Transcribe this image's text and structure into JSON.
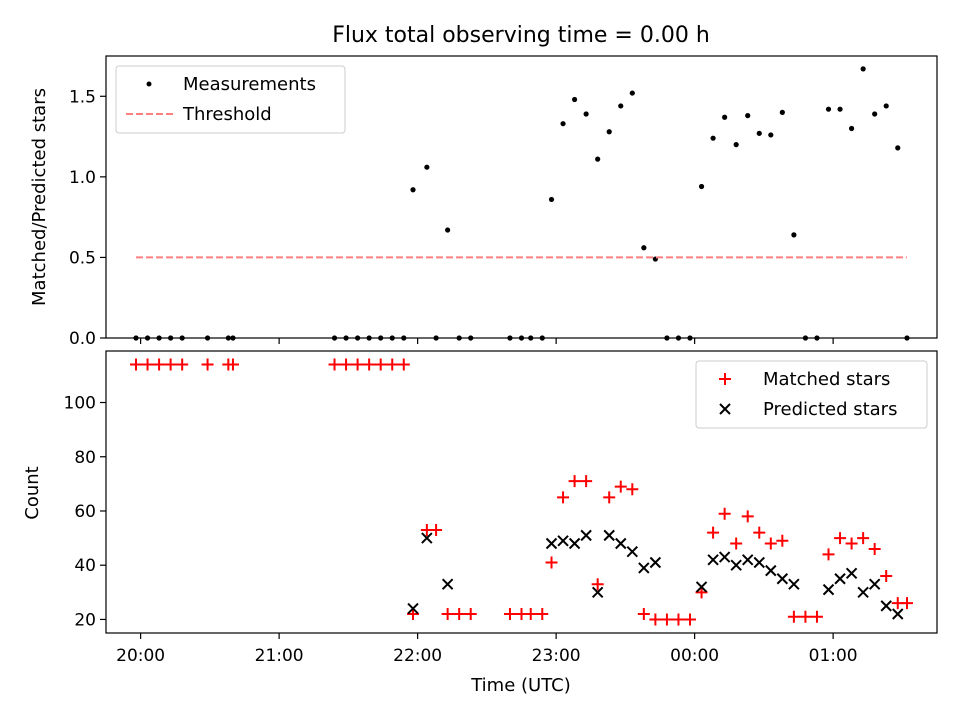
{
  "figure": {
    "title": "Flux total observing time = 0.00 h"
  },
  "chart_data": [
    {
      "type": "scatter",
      "ylabel": "Matched/Predicted stars",
      "xlim": [
        "19:45",
        "01:45"
      ],
      "ylim": [
        0,
        1.75
      ],
      "yticks": [
        0.0,
        0.5,
        1.0,
        1.5
      ],
      "ytick_labels": [
        "0.0",
        "0.5",
        "1.0",
        "1.5"
      ],
      "legend_position": "top-left",
      "series": [
        {
          "name": "Measurements",
          "marker": "dot",
          "color": "#000000",
          "points": [
            [
              "19:58",
              0
            ],
            [
              "20:03",
              0
            ],
            [
              "20:08",
              0
            ],
            [
              "20:13",
              0
            ],
            [
              "20:18",
              0
            ],
            [
              "20:29",
              0
            ],
            [
              "20:38",
              0
            ],
            [
              "20:40",
              0
            ],
            [
              "21:24",
              0
            ],
            [
              "21:29",
              0
            ],
            [
              "21:34",
              0
            ],
            [
              "21:39",
              0
            ],
            [
              "21:44",
              0
            ],
            [
              "21:49",
              0
            ],
            [
              "21:54",
              0
            ],
            [
              "21:58",
              0.92
            ],
            [
              "22:04",
              1.06
            ],
            [
              "22:08",
              0
            ],
            [
              "22:13",
              0.67
            ],
            [
              "22:18",
              0
            ],
            [
              "22:23",
              0
            ],
            [
              "22:40",
              0
            ],
            [
              "22:45",
              0
            ],
            [
              "22:49",
              0
            ],
            [
              "22:54",
              0
            ],
            [
              "22:58",
              0.86
            ],
            [
              "23:03",
              1.33
            ],
            [
              "23:08",
              1.48
            ],
            [
              "23:13",
              1.39
            ],
            [
              "23:18",
              1.11
            ],
            [
              "23:23",
              1.28
            ],
            [
              "23:28",
              1.44
            ],
            [
              "23:33",
              1.52
            ],
            [
              "23:38",
              0.56
            ],
            [
              "23:43",
              0.49
            ],
            [
              "23:48",
              0
            ],
            [
              "23:53",
              0
            ],
            [
              "23:58",
              0
            ],
            [
              "00:03",
              0.94
            ],
            [
              "00:08",
              1.24
            ],
            [
              "00:13",
              1.37
            ],
            [
              "00:18",
              1.2
            ],
            [
              "00:23",
              1.38
            ],
            [
              "00:28",
              1.27
            ],
            [
              "00:33",
              1.26
            ],
            [
              "00:38",
              1.4
            ],
            [
              "00:43",
              0.64
            ],
            [
              "00:48",
              0
            ],
            [
              "00:53",
              0
            ],
            [
              "00:58",
              1.42
            ],
            [
              "01:03",
              1.42
            ],
            [
              "01:08",
              1.3
            ],
            [
              "01:13",
              1.67
            ],
            [
              "01:18",
              1.39
            ],
            [
              "01:23",
              1.44
            ],
            [
              "01:28",
              1.18
            ],
            [
              "01:32",
              0
            ]
          ]
        },
        {
          "name": "Threshold",
          "style": "dashed-line",
          "color": "#ff7f7f",
          "points": [
            [
              "19:58",
              0.5
            ],
            [
              "01:32",
              0.5
            ]
          ]
        }
      ]
    },
    {
      "type": "scatter",
      "xlabel": "Time (UTC)",
      "ylabel": "Count",
      "xlim": [
        "19:45",
        "01:45"
      ],
      "ylim": [
        15,
        119
      ],
      "yticks": [
        20,
        40,
        60,
        80,
        100
      ],
      "ytick_labels": [
        "20",
        "40",
        "60",
        "80",
        "100"
      ],
      "xticks": [
        "20:00",
        "21:00",
        "22:00",
        "23:00",
        "00:00",
        "01:00"
      ],
      "xtick_labels": [
        "20:00",
        "21:00",
        "22:00",
        "23:00",
        "00:00",
        "01:00"
      ],
      "legend_position": "top-right",
      "series": [
        {
          "name": "Matched stars",
          "marker": "+",
          "color": "#ff0000",
          "points": [
            [
              "19:58",
              114
            ],
            [
              "20:03",
              114
            ],
            [
              "20:08",
              114
            ],
            [
              "20:13",
              114
            ],
            [
              "20:18",
              114
            ],
            [
              "20:29",
              114
            ],
            [
              "20:38",
              114
            ],
            [
              "20:40",
              114
            ],
            [
              "21:24",
              114
            ],
            [
              "21:29",
              114
            ],
            [
              "21:34",
              114
            ],
            [
              "21:39",
              114
            ],
            [
              "21:44",
              114
            ],
            [
              "21:49",
              114
            ],
            [
              "21:54",
              114
            ],
            [
              "21:58",
              22
            ],
            [
              "22:04",
              53
            ],
            [
              "22:08",
              53
            ],
            [
              "22:13",
              22
            ],
            [
              "22:18",
              22
            ],
            [
              "22:23",
              22
            ],
            [
              "22:40",
              22
            ],
            [
              "22:45",
              22
            ],
            [
              "22:49",
              22
            ],
            [
              "22:54",
              22
            ],
            [
              "22:58",
              41
            ],
            [
              "23:03",
              65
            ],
            [
              "23:08",
              71
            ],
            [
              "23:13",
              71
            ],
            [
              "23:18",
              33
            ],
            [
              "23:23",
              65
            ],
            [
              "23:28",
              69
            ],
            [
              "23:33",
              68
            ],
            [
              "23:38",
              22
            ],
            [
              "23:43",
              20
            ],
            [
              "23:48",
              20
            ],
            [
              "23:53",
              20
            ],
            [
              "23:58",
              20
            ],
            [
              "00:03",
              30
            ],
            [
              "00:08",
              52
            ],
            [
              "00:13",
              59
            ],
            [
              "00:18",
              48
            ],
            [
              "00:23",
              58
            ],
            [
              "00:28",
              52
            ],
            [
              "00:33",
              48
            ],
            [
              "00:38",
              49
            ],
            [
              "00:43",
              21
            ],
            [
              "00:48",
              21
            ],
            [
              "00:53",
              21
            ],
            [
              "00:58",
              44
            ],
            [
              "01:03",
              50
            ],
            [
              "01:08",
              48
            ],
            [
              "01:13",
              50
            ],
            [
              "01:18",
              46
            ],
            [
              "01:23",
              36
            ],
            [
              "01:28",
              26
            ],
            [
              "01:32",
              26
            ]
          ]
        },
        {
          "name": "Predicted stars",
          "marker": "x",
          "color": "#000000",
          "points": [
            [
              "21:58",
              24
            ],
            [
              "22:04",
              50
            ],
            [
              "22:13",
              33
            ],
            [
              "22:58",
              48
            ],
            [
              "23:03",
              49
            ],
            [
              "23:08",
              48
            ],
            [
              "23:13",
              51
            ],
            [
              "23:18",
              30
            ],
            [
              "23:23",
              51
            ],
            [
              "23:28",
              48
            ],
            [
              "23:33",
              45
            ],
            [
              "23:38",
              39
            ],
            [
              "23:43",
              41
            ],
            [
              "00:03",
              32
            ],
            [
              "00:08",
              42
            ],
            [
              "00:13",
              43
            ],
            [
              "00:18",
              40
            ],
            [
              "00:23",
              42
            ],
            [
              "00:28",
              41
            ],
            [
              "00:33",
              38
            ],
            [
              "00:38",
              35
            ],
            [
              "00:43",
              33
            ],
            [
              "00:58",
              31
            ],
            [
              "01:03",
              35
            ],
            [
              "01:08",
              37
            ],
            [
              "01:13",
              30
            ],
            [
              "01:18",
              33
            ],
            [
              "01:23",
              25
            ],
            [
              "01:28",
              22
            ]
          ]
        }
      ]
    }
  ]
}
